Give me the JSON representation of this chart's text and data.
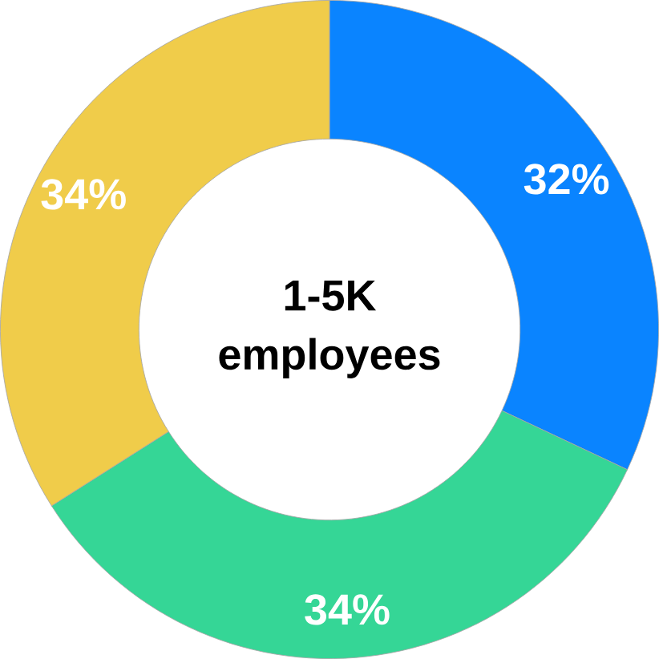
{
  "chart_data": {
    "type": "donut",
    "title": "1-5K employees",
    "categories": [
      null,
      null,
      null
    ],
    "values": [
      32,
      34,
      34
    ],
    "colors": [
      "#0a84ff",
      "#35d696",
      "#f0cc4a"
    ],
    "value_labels": [
      "32%",
      "34%",
      "34%"
    ]
  }
}
